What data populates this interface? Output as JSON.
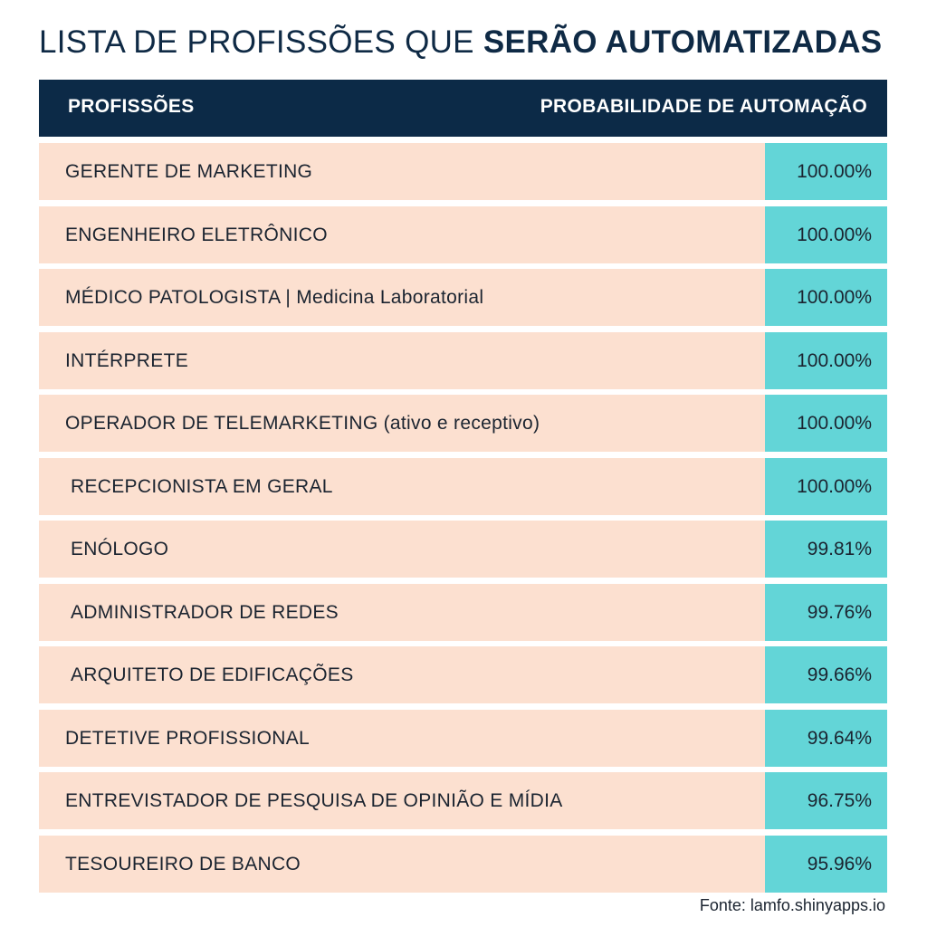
{
  "title": {
    "prefix": "LISTA DE PROFISSÕES QUE ",
    "highlight": "SERÃO AUTOMATIZADAS"
  },
  "chart_data": {
    "type": "table",
    "columns": [
      "PROFISSÕES",
      "PROBABILIDADE DE AUTOMAÇÃO"
    ],
    "rows": [
      {
        "profession": "GERENTE DE MARKETING",
        "probability": 100.0,
        "label": "100.00%"
      },
      {
        "profession": "ENGENHEIRO ELETRÔNICO",
        "probability": 100.0,
        "label": "100.00%"
      },
      {
        "profession": "MÉDICO PATOLOGISTA | Medicina Laboratorial",
        "probability": 100.0,
        "label": "100.00%"
      },
      {
        "profession": "INTÉRPRETE",
        "probability": 100.0,
        "label": "100.00%"
      },
      {
        "profession": "OPERADOR DE TELEMARKETING (ativo e receptivo)",
        "probability": 100.0,
        "label": "100.00%"
      },
      {
        "profession": "RECEPCIONISTA EM GERAL",
        "probability": 100.0,
        "label": "100.00%"
      },
      {
        "profession": "ENÓLOGO",
        "probability": 99.81,
        "label": "99.81%"
      },
      {
        "profession": "ADMINISTRADOR DE REDES",
        "probability": 99.76,
        "label": "99.76%"
      },
      {
        "profession": "ARQUITETO DE EDIFICAÇÕES",
        "probability": 99.66,
        "label": "99.66%"
      },
      {
        "profession": "DETETIVE PROFISSIONAL",
        "probability": 99.64,
        "label": "99.64%"
      },
      {
        "profession": "ENTREVISTADOR DE PESQUISA DE OPINIÃO E MÍDIA",
        "probability": 96.75,
        "label": "96.75%"
      },
      {
        "profession": "TESOUREIRO DE BANCO",
        "probability": 95.96,
        "label": "95.96%"
      }
    ]
  },
  "source": "Fonte: lamfo.shinyapps.io",
  "colors": {
    "header_bg": "#0c2a47",
    "row_bg": "#fce0d0",
    "value_bg": "#63d5d7",
    "title_text": "#0f2a45"
  }
}
